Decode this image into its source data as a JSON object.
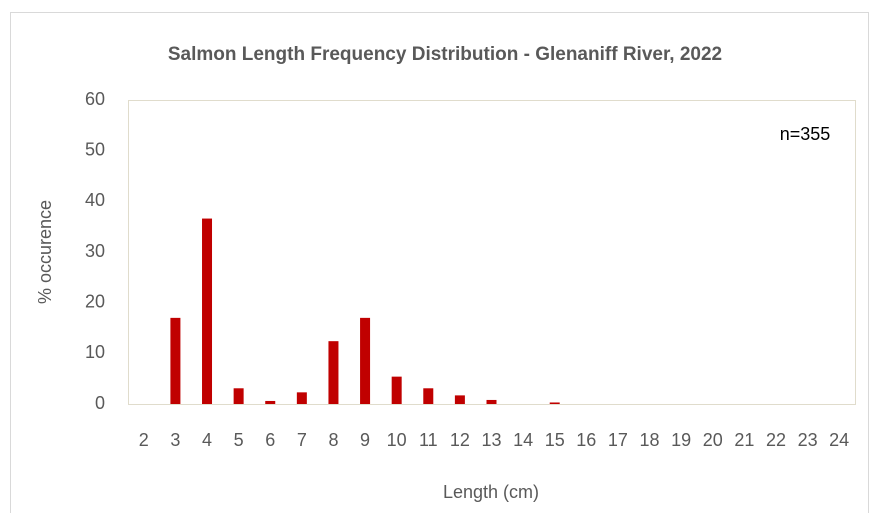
{
  "chart_data": {
    "type": "bar",
    "title": "Salmon Length Frequency Distribution - Glenaniff River, 2022",
    "x_label": "Length (cm)",
    "y_label": "% occurence",
    "annotation": "n=355",
    "categories": [
      "2",
      "3",
      "4",
      "5",
      "6",
      "7",
      "8",
      "9",
      "10",
      "11",
      "12",
      "13",
      "14",
      "15",
      "16",
      "17",
      "18",
      "19",
      "20",
      "21",
      "22",
      "23",
      "24"
    ],
    "values": [
      0,
      17,
      36.6,
      3.1,
      0.6,
      2.3,
      12.4,
      17,
      5.4,
      3.1,
      1.7,
      0.8,
      0,
      0.3,
      0,
      0,
      0,
      0,
      0,
      0,
      0,
      0,
      0
    ],
    "color": "#c00000",
    "ylim": [
      0,
      60
    ],
    "yticks": [
      0,
      10,
      20,
      30,
      40,
      50,
      60
    ],
    "grid": false
  }
}
